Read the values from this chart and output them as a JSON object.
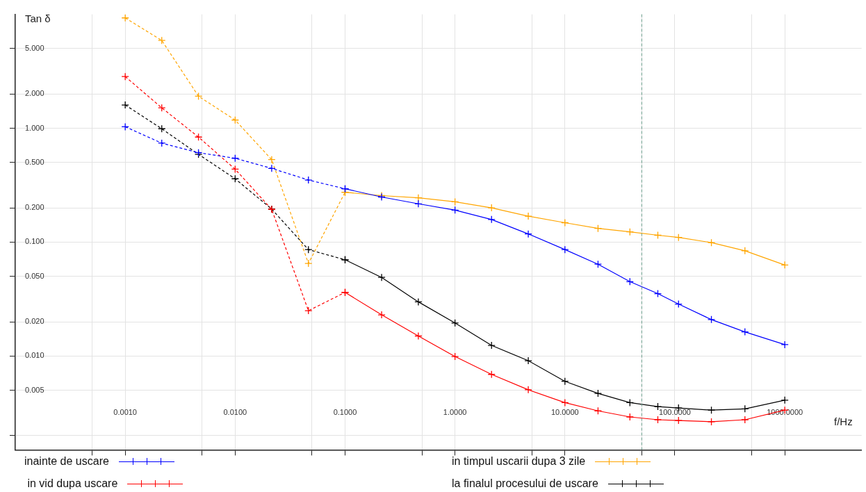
{
  "chart_data": {
    "type": "line",
    "xlabel": "f/Hz",
    "ylabel": "Tan δ",
    "log": "xy",
    "grid": true,
    "legend": "bottom",
    "marker": "cross",
    "xlim": [
      0.0001,
      5000
    ],
    "ylim": [
      0.0015,
      10
    ],
    "xticks": [
      {
        "value": 0.0005,
        "label": null
      },
      {
        "value": 0.001,
        "label": "0.0010"
      },
      {
        "value": 0.005,
        "label": null
      },
      {
        "value": 0.01,
        "label": "0.0100"
      },
      {
        "value": 0.05,
        "label": null
      },
      {
        "value": 0.1,
        "label": "0.1000"
      },
      {
        "value": 0.5,
        "label": null
      },
      {
        "value": 1,
        "label": "1.0000"
      },
      {
        "value": 5,
        "label": null
      },
      {
        "value": 10,
        "label": "10.0000"
      },
      {
        "value": 50,
        "label": null
      },
      {
        "value": 100,
        "label": "100.0000"
      },
      {
        "value": 500,
        "label": null
      },
      {
        "value": 1000,
        "label": "1000.0000"
      }
    ],
    "yticks": [
      {
        "value": 0.002,
        "label": null
      },
      {
        "value": 0.005,
        "label": "0.005"
      },
      {
        "value": 0.01,
        "label": "0.010"
      },
      {
        "value": 0.02,
        "label": "0.020"
      },
      {
        "value": 0.05,
        "label": "0.050"
      },
      {
        "value": 0.1,
        "label": "0.100"
      },
      {
        "value": 0.2,
        "label": "0.200"
      },
      {
        "value": 0.5,
        "label": "0.500"
      },
      {
        "value": 1,
        "label": "1.000"
      },
      {
        "value": 2,
        "label": "2.000"
      },
      {
        "value": 5,
        "label": "5.000"
      }
    ],
    "ref_lines": [
      {
        "axis": "x",
        "value": 50,
        "color": "#6a9e8c",
        "line_style": "dashed"
      }
    ],
    "series": [
      {
        "color": "#0000ff",
        "line_style": "dashed",
        "x": [
          0.001,
          0.00215,
          0.00464,
          0.01,
          0.0215,
          0.0464,
          0.1
        ],
        "values": [
          1.03,
          0.74,
          0.61,
          0.545,
          0.444,
          0.351,
          0.294
        ]
      },
      {
        "color": "#ffa500",
        "line_style": "dashed",
        "x": [
          0.001,
          0.00215,
          0.00464,
          0.01,
          0.0215,
          0.0464,
          0.1
        ],
        "values": [
          9.3,
          5.9,
          1.91,
          1.18,
          0.53,
          0.065,
          0.274
        ]
      },
      {
        "color": "#ff0000",
        "line_style": "dashed",
        "x": [
          0.001,
          0.00215,
          0.00464,
          0.01,
          0.0215,
          0.0464,
          0.1
        ],
        "values": [
          2.84,
          1.51,
          0.836,
          0.437,
          0.194,
          0.025,
          0.0362
        ]
      },
      {
        "color": "#000000",
        "line_style": "dashed",
        "x": [
          0.001,
          0.00215,
          0.00464,
          0.01,
          0.0215,
          0.0464,
          0.1
        ],
        "values": [
          1.6,
          0.99,
          0.59,
          0.36,
          0.195,
          0.086,
          0.07
        ]
      },
      {
        "name": "inainte de uscare",
        "color": "#0000ff",
        "line_style": "solid",
        "x": [
          0.1,
          0.215,
          0.464,
          1,
          2.15,
          4.64,
          10,
          20,
          39,
          70,
          108,
          215,
          434,
          1000
        ],
        "values": [
          0.294,
          0.249,
          0.217,
          0.191,
          0.158,
          0.118,
          0.086,
          0.064,
          0.045,
          0.0353,
          0.0286,
          0.0209,
          0.0163,
          0.0126
        ]
      },
      {
        "name": "in timpul uscarii dupa 3 zile",
        "color": "#ffa500",
        "line_style": "solid",
        "x": [
          0.1,
          0.215,
          0.464,
          1,
          2.15,
          4.64,
          10,
          20,
          39,
          70,
          108,
          215,
          434,
          1000
        ],
        "values": [
          0.274,
          0.256,
          0.245,
          0.226,
          0.2,
          0.169,
          0.148,
          0.132,
          0.123,
          0.115,
          0.11,
          0.099,
          0.084,
          0.063
        ]
      },
      {
        "name": " in vid dupa uscare",
        "color": "#ff0000",
        "line_style": "solid",
        "x": [
          0.1,
          0.215,
          0.464,
          1,
          2.15,
          4.64,
          10,
          20,
          39,
          70,
          108,
          215,
          434,
          1000
        ],
        "values": [
          0.0362,
          0.023,
          0.015,
          0.0099,
          0.0069,
          0.00506,
          0.0039,
          0.0033,
          0.00292,
          0.00276,
          0.00272,
          0.00265,
          0.00276,
          0.00335
        ]
      },
      {
        "name": "la finalul procesului de uscare",
        "color": "#000000",
        "line_style": "solid",
        "x": [
          0.1,
          0.215,
          0.464,
          1,
          2.15,
          4.64,
          10,
          20,
          39,
          70,
          108,
          215,
          434,
          1000
        ],
        "values": [
          0.07,
          0.049,
          0.0299,
          0.0195,
          0.0124,
          0.0091,
          0.006,
          0.0047,
          0.0039,
          0.0036,
          0.0035,
          0.00335,
          0.00344,
          0.0041
        ]
      }
    ]
  }
}
